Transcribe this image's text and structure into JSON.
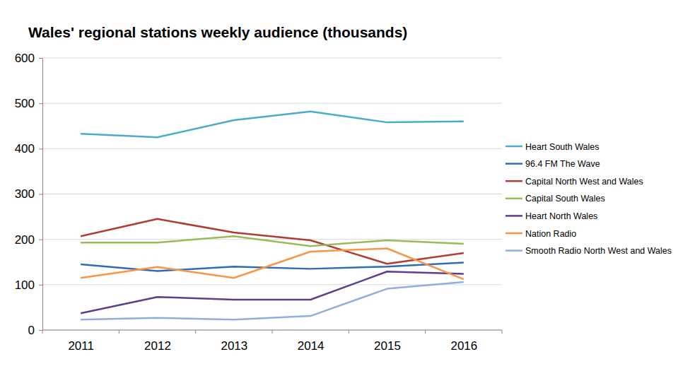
{
  "chart_data": {
    "type": "line",
    "title": "Wales' regional stations weekly audience (thousands)",
    "categories": [
      "2011",
      "2012",
      "2013",
      "2014",
      "2015",
      "2016"
    ],
    "series": [
      {
        "name": "Heart South Wales",
        "color": "#4bacc6",
        "values": [
          433,
          425,
          463,
          482,
          458,
          460
        ]
      },
      {
        "name": "96.4 FM The Wave",
        "color": "#2f6db3",
        "values": [
          145,
          130,
          140,
          135,
          140,
          149
        ]
      },
      {
        "name": "Capital North West and Wales",
        "color": "#b03c34",
        "values": [
          207,
          245,
          215,
          198,
          146,
          170
        ]
      },
      {
        "name": "Capital South Wales",
        "color": "#9bbb59",
        "values": [
          193,
          193,
          207,
          185,
          198,
          190
        ]
      },
      {
        "name": "Heart North Wales",
        "color": "#5e3f8c",
        "values": [
          37,
          73,
          67,
          67,
          129,
          124
        ]
      },
      {
        "name": "Nation Radio",
        "color": "#f79646",
        "values": [
          115,
          139,
          115,
          173,
          180,
          112
        ]
      },
      {
        "name": "Smooth Radio North West and Wales",
        "color": "#8fb0dc",
        "values": [
          23,
          27,
          23,
          31,
          91,
          106
        ]
      }
    ],
    "ylim": [
      0,
      600
    ],
    "yticks": [
      0,
      100,
      200,
      300,
      400,
      500,
      600
    ],
    "grid": true,
    "legend": "right"
  }
}
